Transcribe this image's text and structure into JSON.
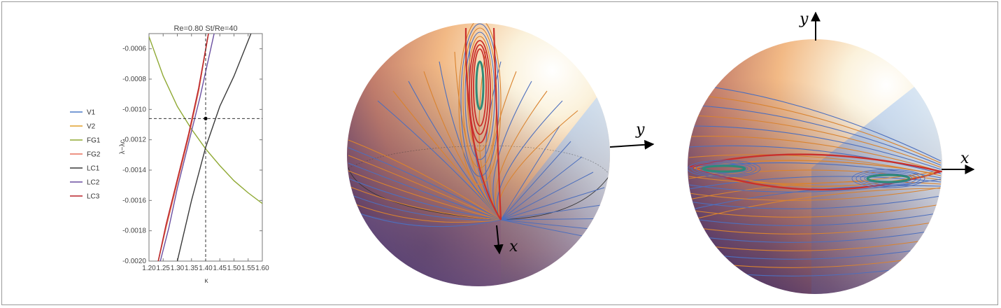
{
  "chart_data": [
    {
      "type": "line",
      "title": "Re=0.80 St/Re=40",
      "xlabel": "κ",
      "ylabel": "λ−λc",
      "xlim": [
        1.2,
        1.6
      ],
      "ylim": [
        -0.002,
        -0.0005
      ],
      "xticks": [
        "1.20",
        "1.25",
        "1.30",
        "1.35",
        "1.40",
        "1.45",
        "1.50",
        "1.55",
        "1.60"
      ],
      "xtick_values": [
        1.2,
        1.25,
        1.3,
        1.35,
        1.4,
        1.45,
        1.5,
        1.55,
        1.6
      ],
      "yticks": [
        "-0.0006",
        "-0.0008",
        "-0.0010",
        "-0.0012",
        "-0.0014",
        "-0.0016",
        "-0.0018",
        "-0.0020"
      ],
      "ytick_values": [
        -0.0006,
        -0.0008,
        -0.001,
        -0.0012,
        -0.0014,
        -0.0016,
        -0.0018,
        -0.002
      ],
      "legend": "left",
      "series": [
        {
          "name": "V1",
          "color": "#4d7ac7",
          "x": [
            1.2325,
            1.26,
            1.3,
            1.34,
            1.375,
            1.41
          ],
          "y": [
            -0.002,
            -0.00178,
            -0.00148,
            -0.00118,
            -0.00088,
            -0.0005
          ]
        },
        {
          "name": "V2",
          "color": "#e1a12b",
          "x": [
            1.2325,
            1.26,
            1.3,
            1.34,
            1.375,
            1.41
          ],
          "y": [
            -0.002,
            -0.00178,
            -0.00148,
            -0.00118,
            -0.00088,
            -0.0005
          ]
        },
        {
          "name": "FG1",
          "color": "#8fa934",
          "x": [
            1.2,
            1.25,
            1.3,
            1.35,
            1.4,
            1.45,
            1.5,
            1.55,
            1.6
          ],
          "y": [
            -0.00052,
            -0.00078,
            -0.00098,
            -0.00113,
            -0.00126,
            -0.00137,
            -0.00147,
            -0.00155,
            -0.00162
          ]
        },
        {
          "name": "FG2",
          "color": "#e8705b",
          "x": [
            1.2325,
            1.26,
            1.3,
            1.34,
            1.375,
            1.41
          ],
          "y": [
            -0.002,
            -0.00178,
            -0.00148,
            -0.00118,
            -0.00088,
            -0.0005
          ]
        },
        {
          "name": "LC1",
          "color": "#3a3a3a",
          "x": [
            1.3,
            1.35,
            1.4,
            1.45,
            1.5,
            1.56
          ],
          "y": [
            -0.002,
            -0.0016,
            -0.00125,
            -0.00098,
            -0.00078,
            -0.0005
          ]
        },
        {
          "name": "LC2",
          "color": "#6a4fa0",
          "x": [
            1.24,
            1.27,
            1.3,
            1.34,
            1.38,
            1.43
          ],
          "y": [
            -0.002,
            -0.00178,
            -0.00152,
            -0.00122,
            -0.00092,
            -0.0005
          ]
        },
        {
          "name": "LC3",
          "color": "#b8232a",
          "x": [
            1.2325,
            1.26,
            1.3,
            1.34,
            1.375,
            1.41
          ],
          "y": [
            -0.002,
            -0.00176,
            -0.00146,
            -0.00116,
            -0.00086,
            -0.0005
          ]
        }
      ],
      "crosshair": {
        "x": 1.4,
        "y": -0.00106
      }
    }
  ],
  "spheres": {
    "left": {
      "axis_labels": [
        "y",
        "x"
      ]
    },
    "right": {
      "axis_labels": [
        "y",
        "x"
      ]
    }
  }
}
